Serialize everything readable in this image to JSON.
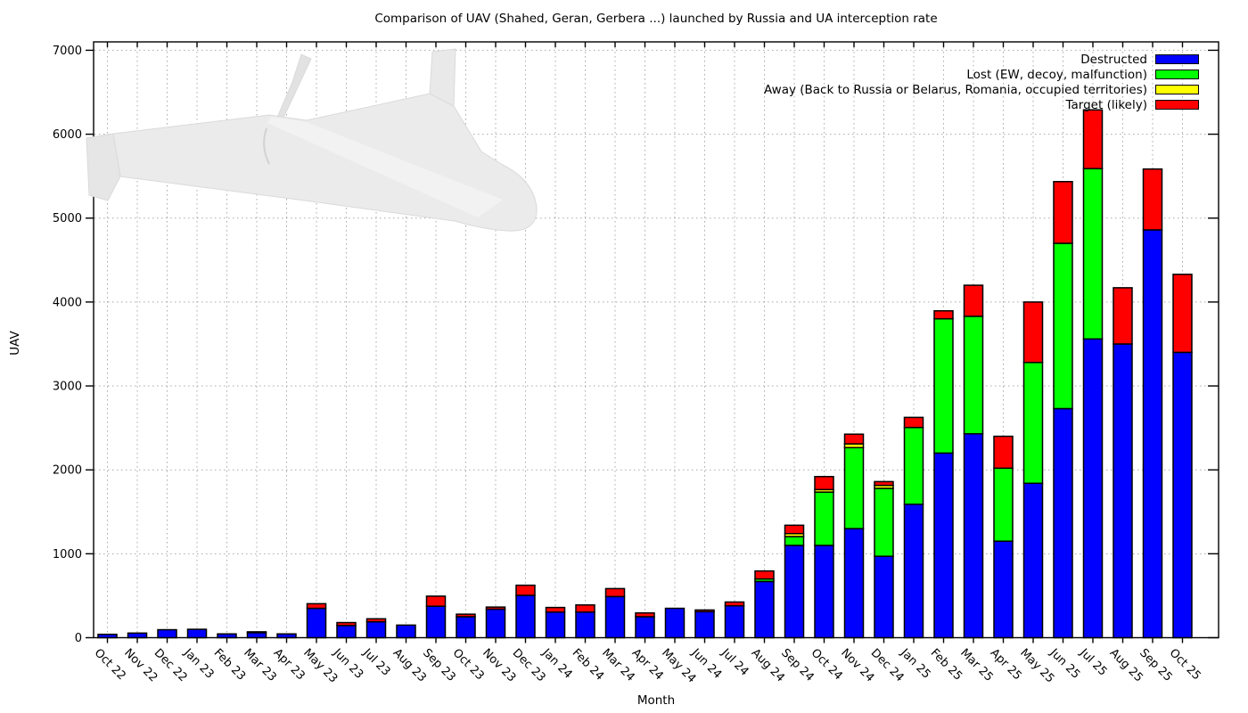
{
  "title": "Comparison of UAV (Shahed, Geran, Gerbera ...) launched by Russia and UA interception rate",
  "xlabel": "Month",
  "ylabel": "UAV",
  "drone_image": "shahed-drone-silhouette",
  "chart_data": {
    "type": "bar",
    "stacked": true,
    "title": "Comparison of UAV (Shahed, Geran, Gerbera ...) launched by Russia and UA interception rate",
    "xlabel": "Month",
    "ylabel": "UAV",
    "ylim": [
      0,
      7100
    ],
    "ytick_step": 1000,
    "ytick_labels": [
      "0",
      "1000",
      "2000",
      "3000",
      "4000",
      "5000",
      "6000",
      "7000"
    ],
    "grid": true,
    "legend_position": "top-right-inside",
    "categories": [
      "Oct 22",
      "Nov 22",
      "Dec 22",
      "Jan 23",
      "Feb 23",
      "Mar 23",
      "Apr 23",
      "May 23",
      "Jun 23",
      "Jul 23",
      "Aug 23",
      "Sep 23",
      "Oct 23",
      "Nov 23",
      "Dec 23",
      "Jan 24",
      "Feb 24",
      "Mar 24",
      "Apr 24",
      "May 24",
      "Jun 24",
      "Jul 24",
      "Aug 24",
      "Sep 24",
      "Oct 24",
      "Nov 24",
      "Dec 24",
      "Jan 25",
      "Feb 25",
      "Mar 25",
      "Apr 25",
      "May 25",
      "Jun 25",
      "Jul 25",
      "Aug 25",
      "Sep 25",
      "Oct 25"
    ],
    "series": [
      {
        "name": "Destructed",
        "color": "#0000ff",
        "values": [
          40,
          55,
          95,
          100,
          45,
          60,
          45,
          350,
          145,
          190,
          150,
          375,
          250,
          340,
          505,
          305,
          305,
          490,
          250,
          350,
          310,
          380,
          670,
          1100,
          1100,
          1300,
          970,
          1590,
          2200,
          2430,
          1150,
          1840,
          2730,
          3560,
          3500,
          4860,
          3400
        ]
      },
      {
        "name": "Lost (EW, decoy, malfunction)",
        "color": "#00ff00",
        "values": [
          0,
          0,
          0,
          0,
          0,
          0,
          0,
          0,
          0,
          0,
          0,
          0,
          0,
          0,
          0,
          0,
          0,
          0,
          0,
          0,
          0,
          0,
          30,
          105,
          635,
          965,
          810,
          915,
          1600,
          1400,
          870,
          1440,
          1970,
          2030,
          0,
          0,
          0
        ]
      },
      {
        "name": "Away (Back to Russia or Belarus, Romania, occupied territories)",
        "color": "#ffff00",
        "values": [
          0,
          0,
          0,
          0,
          0,
          0,
          0,
          0,
          0,
          0,
          0,
          0,
          0,
          0,
          0,
          0,
          0,
          0,
          0,
          0,
          0,
          0,
          0,
          35,
          30,
          45,
          35,
          0,
          0,
          0,
          0,
          0,
          0,
          0,
          0,
          0,
          0
        ]
      },
      {
        "name": "Target (likely)",
        "color": "#ff0000",
        "values": [
          0,
          0,
          0,
          0,
          0,
          10,
          0,
          55,
          35,
          35,
          0,
          120,
          30,
          25,
          120,
          55,
          85,
          95,
          45,
          0,
          20,
          45,
          95,
          100,
          155,
          115,
          45,
          120,
          95,
          370,
          380,
          720,
          735,
          700,
          670,
          725,
          930
        ]
      }
    ]
  }
}
